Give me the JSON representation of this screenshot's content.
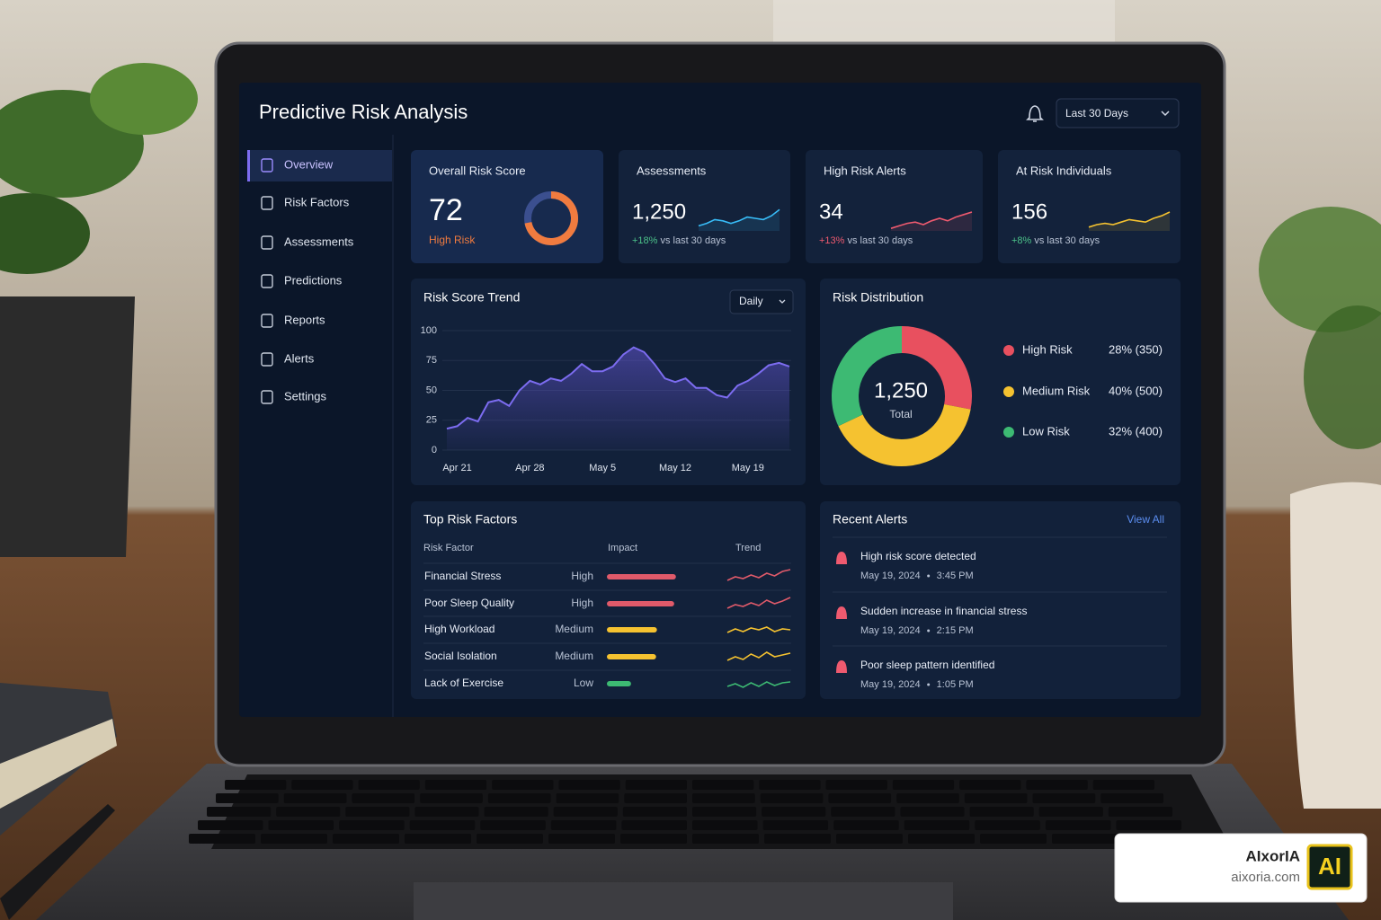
{
  "header": {
    "title": "Predictive Risk Analysis",
    "period": "Last 30 Days"
  },
  "nav": [
    "Overview",
    "Risk Factors",
    "Assessments",
    "Predictions",
    "Reports",
    "Alerts",
    "Settings"
  ],
  "kpis": [
    {
      "label": "Overall Risk Score",
      "value": 72,
      "status": "High Risk",
      "color": "#f07b3f"
    },
    {
      "label": "Assessments",
      "value": "1,250",
      "change": "+18%",
      "change_color": "#4cc38a",
      "note": "vs last 30 days",
      "color": "#38bdf8",
      "trend": [
        8,
        12,
        18,
        16,
        12,
        16,
        22,
        20,
        18,
        24,
        34
      ]
    },
    {
      "label": "High Risk Alerts",
      "value": "34",
      "change": "+13%",
      "change_color": "#ef5a6f",
      "note": "vs last 30 days",
      "color": "#ef5a6f",
      "trend": [
        4,
        8,
        12,
        14,
        10,
        16,
        20,
        16,
        22,
        26,
        30
      ]
    },
    {
      "label": "At Risk Individuals",
      "value": "156",
      "change": "+8%",
      "change_color": "#4cc38a",
      "note": "vs last 30 days",
      "color": "#f5c230",
      "trend": [
        6,
        10,
        12,
        10,
        14,
        18,
        16,
        14,
        20,
        24,
        30
      ]
    }
  ],
  "risk_trend": {
    "type": "area",
    "title": "Risk Score Trend",
    "interval": "Daily",
    "color": "#7c6cf0",
    "categories": [
      null,
      "Apr 21",
      null,
      null,
      null,
      null,
      null,
      null,
      "Apr 28",
      null,
      null,
      null,
      null,
      null,
      null,
      "May 5",
      null,
      null,
      null,
      null,
      null,
      null,
      "May 12",
      null,
      null,
      null,
      null,
      null,
      null,
      "May 19",
      null,
      null,
      null,
      null
    ],
    "values": [
      18,
      20,
      27,
      24,
      40,
      42,
      37,
      50,
      58,
      55,
      60,
      58,
      64,
      72,
      66,
      66,
      70,
      80,
      86,
      82,
      72,
      60,
      57,
      60,
      52,
      52,
      46,
      44,
      54,
      58,
      64,
      71,
      73,
      70
    ],
    "ylim": [
      0,
      100
    ],
    "yticks": [
      0,
      25,
      50,
      75,
      100
    ],
    "grid": true
  },
  "risk_distribution": {
    "type": "donut",
    "title": "Risk Distribution",
    "center_value": "1,250",
    "center_label": "Total",
    "categories": [
      "High Risk",
      "Medium Risk",
      "Low Risk"
    ],
    "values": [
      28,
      40,
      32
    ],
    "value_labels": [
      "28% (350)",
      "40% (500)",
      "32% (400)"
    ],
    "colors": [
      "#e8505f",
      "#f5c230",
      "#3dba73"
    ]
  },
  "risk_factors": {
    "title": "Top Risk Factors",
    "columns": [
      "Risk Factor",
      "Impact",
      "Trend"
    ],
    "rows": [
      {
        "name": "Financial Stress",
        "level": "High",
        "impact": 80,
        "color": "#e05a6a",
        "trend": [
          4,
          8,
          6,
          10,
          7,
          12,
          9,
          14,
          16
        ]
      },
      {
        "name": "Poor Sleep Quality",
        "level": "High",
        "impact": 78,
        "color": "#e05a6a",
        "trend": [
          3,
          7,
          5,
          9,
          6,
          12,
          8,
          11,
          15
        ]
      },
      {
        "name": "High Workload",
        "level": "Medium",
        "impact": 58,
        "color": "#f5c230",
        "trend": [
          5,
          9,
          6,
          10,
          8,
          11,
          6,
          9,
          8
        ]
      },
      {
        "name": "Social Isolation",
        "level": "Medium",
        "impact": 57,
        "color": "#f5c230",
        "trend": [
          4,
          8,
          5,
          11,
          7,
          13,
          8,
          10,
          12
        ]
      },
      {
        "name": "Lack of Exercise",
        "level": "Low",
        "impact": 28,
        "color": "#3dba73",
        "trend": [
          5,
          8,
          4,
          9,
          5,
          10,
          6,
          9,
          10
        ]
      }
    ]
  },
  "alerts": {
    "title": "Recent Alerts",
    "action": "View All",
    "items": [
      {
        "text": "High risk score detected",
        "date": "May 19, 2024",
        "time": "3:45 PM"
      },
      {
        "text": "Sudden increase in financial stress",
        "date": "May 19, 2024",
        "time": "2:15 PM"
      },
      {
        "text": "Poor sleep pattern identified",
        "date": "May 19, 2024",
        "time": "1:05 PM"
      }
    ]
  },
  "badge": {
    "brand": "AIxorIA",
    "site": "aixoria.com",
    "logo": "AI"
  }
}
